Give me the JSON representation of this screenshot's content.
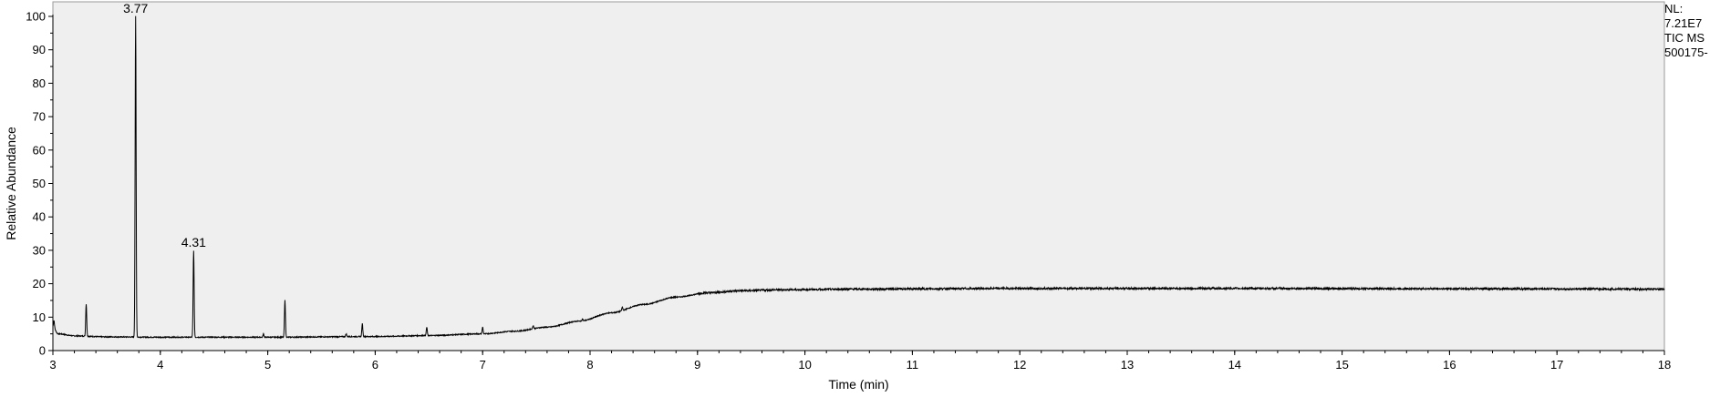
{
  "header": {
    "nl_label": "NL:",
    "nl_value": "7.21E7",
    "trace": "TIC  MS",
    "file": "500175-"
  },
  "colors": {
    "plot_background": "#efefef",
    "trace": "#000000",
    "axis": "#000000",
    "frame": "#9a9a9a"
  },
  "chart_data": {
    "type": "line",
    "xlabel": "Time (min)",
    "ylabel": "Relative Abundance",
    "xlim": [
      3,
      18
    ],
    "ylim": [
      0,
      100
    ],
    "x_ticks": [
      3,
      4,
      5,
      6,
      7,
      8,
      9,
      10,
      11,
      12,
      13,
      14,
      15,
      16,
      17,
      18
    ],
    "y_ticks": [
      0,
      10,
      20,
      30,
      40,
      50,
      60,
      70,
      80,
      90,
      100
    ],
    "grid": false,
    "legend": "none",
    "peak_labels": [
      {
        "text": "3.77",
        "x": 3.77,
        "y": 100
      },
      {
        "text": "4.31",
        "x": 4.31,
        "y": 30
      }
    ],
    "baseline": {
      "x": [
        3.0,
        3.05,
        3.2,
        3.5,
        4.0,
        5.0,
        6.0,
        6.5,
        7.0,
        7.3,
        7.6,
        7.9,
        8.2,
        8.5,
        8.8,
        9.1,
        9.4,
        9.8,
        10.5,
        12.0,
        14.0,
        16.0,
        18.0
      ],
      "y": [
        7,
        5,
        4.4,
        4.1,
        4.0,
        4.0,
        4.2,
        4.5,
        5.0,
        5.8,
        7.0,
        8.8,
        11.3,
        13.8,
        16.0,
        17.3,
        17.9,
        18.2,
        18.4,
        18.6,
        18.6,
        18.5,
        18.4
      ]
    },
    "peaks": [
      {
        "x": 3.01,
        "y": 9
      },
      {
        "x": 3.31,
        "y": 14
      },
      {
        "x": 3.77,
        "y": 100
      },
      {
        "x": 4.31,
        "y": 30
      },
      {
        "x": 4.96,
        "y": 5
      },
      {
        "x": 5.16,
        "y": 15
      },
      {
        "x": 5.73,
        "y": 5
      },
      {
        "x": 5.88,
        "y": 8
      },
      {
        "x": 6.48,
        "y": 7
      },
      {
        "x": 7.0,
        "y": 7
      },
      {
        "x": 7.47,
        "y": 7.5
      },
      {
        "x": 7.93,
        "y": 9.5
      },
      {
        "x": 8.3,
        "y": 13
      }
    ]
  }
}
